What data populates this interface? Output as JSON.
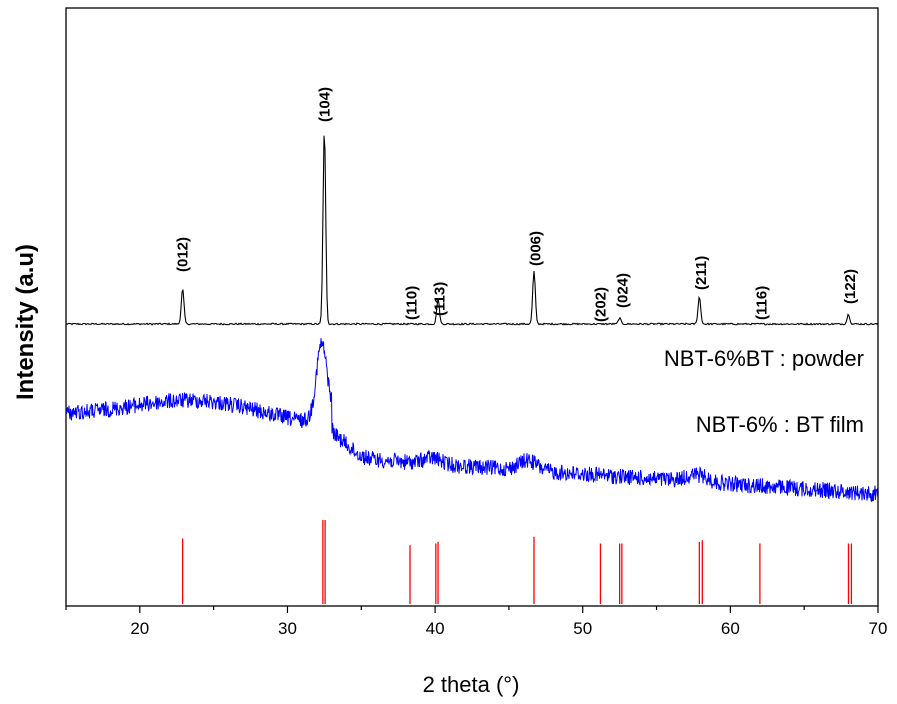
{
  "chart_data": {
    "type": "line",
    "xlabel": "2 theta (°)",
    "ylabel": "Intensity (a.u)",
    "xlim": [
      15,
      70
    ],
    "xticks": [
      20,
      30,
      40,
      50,
      60,
      70
    ],
    "y_scale": "arbitrary units, stacked offsets",
    "grid": false,
    "series": [
      {
        "name": "NBT-6%BT : powder",
        "color": "#000000",
        "peaks": [
          {
            "x": 22.9,
            "intensity": 0.18
          },
          {
            "x": 32.5,
            "intensity": 1.0
          },
          {
            "x": 40.2,
            "intensity": 0.13
          },
          {
            "x": 46.7,
            "intensity": 0.27
          },
          {
            "x": 52.5,
            "intensity": 0.03
          },
          {
            "x": 57.9,
            "intensity": 0.14
          },
          {
            "x": 68.0,
            "intensity": 0.05
          }
        ]
      },
      {
        "name": "NBT-6% : BT film",
        "color": "#0000ff",
        "peaks": [
          {
            "x": 22.5,
            "intensity": 0.3
          },
          {
            "x": 32.3,
            "intensity": 1.0
          },
          {
            "x": 39.8,
            "intensity": 0.1
          },
          {
            "x": 46.3,
            "intensity": 0.2
          },
          {
            "x": 57.7,
            "intensity": 0.1
          }
        ]
      },
      {
        "name": "",
        "type": "stick",
        "color": "#ff0000",
        "sticks": [
          {
            "x": 22.9,
            "h": 0.78
          },
          {
            "x": 32.4,
            "h": 1.0
          },
          {
            "x": 32.55,
            "h": 1.0
          },
          {
            "x": 38.3,
            "h": 0.7
          },
          {
            "x": 40.05,
            "h": 0.72
          },
          {
            "x": 40.2,
            "h": 0.74
          },
          {
            "x": 46.7,
            "h": 0.8
          },
          {
            "x": 51.2,
            "h": 0.72
          },
          {
            "x": 52.5,
            "h": 0.72
          },
          {
            "x": 52.65,
            "h": 0.72
          },
          {
            "x": 57.9,
            "h": 0.74
          },
          {
            "x": 58.1,
            "h": 0.76
          },
          {
            "x": 62.0,
            "h": 0.72
          },
          {
            "x": 68.0,
            "h": 0.72
          },
          {
            "x": 68.2,
            "h": 0.72
          }
        ]
      }
    ],
    "annotations": [
      {
        "text": "(012)",
        "x": 22.9
      },
      {
        "text": "(104)",
        "x": 32.5
      },
      {
        "text": "(110)",
        "x": 38.4
      },
      {
        "text": "(113)",
        "x": 40.3
      },
      {
        "text": "(006)",
        "x": 46.8
      },
      {
        "text": "(202)",
        "x": 51.2
      },
      {
        "text": "(024)",
        "x": 52.7
      },
      {
        "text": "(211)",
        "x": 58.0
      },
      {
        "text": "(116)",
        "x": 62.1
      },
      {
        "text": "(122)",
        "x": 68.1
      }
    ]
  }
}
